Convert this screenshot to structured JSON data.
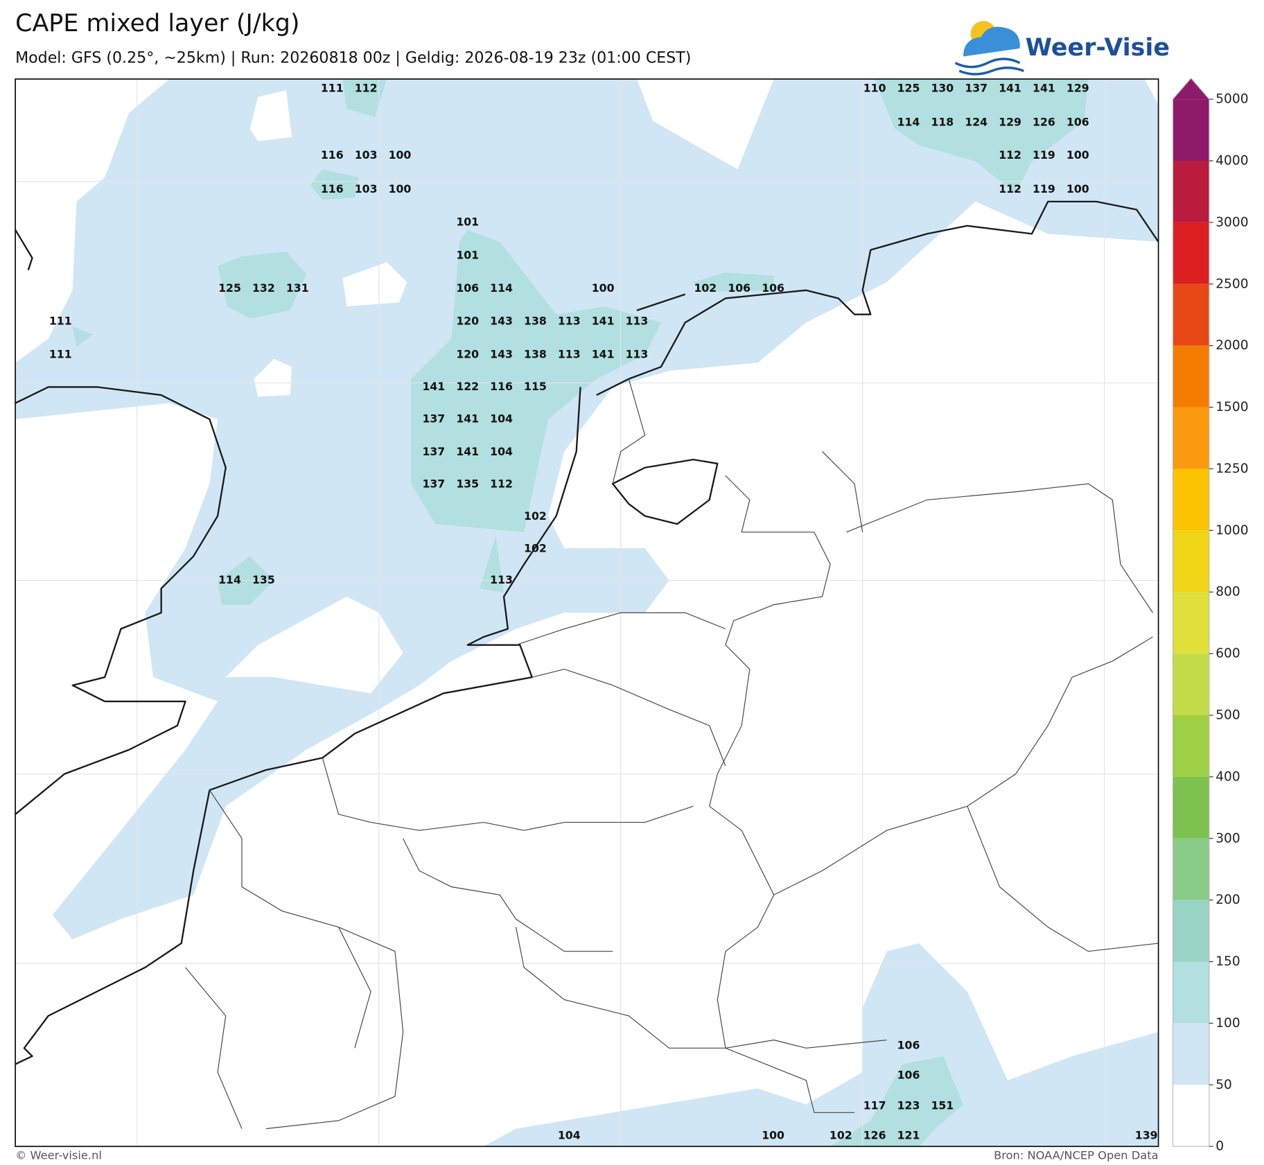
{
  "title": "CAPE mixed layer (J/kg)",
  "subtitle": "Model: GFS (0.25°, ~25km)  |  Run: 20260818 00z  |  Geldig: 2026-08-19 23z (01:00 CEST)",
  "logo": "Weer-Visie",
  "footer_left": "© Weer-visie.nl",
  "footer_right": "Bron: NOAA/NCEP Open Data",
  "colorbar": {
    "ticks": [
      0,
      50,
      100,
      150,
      200,
      300,
      400,
      500,
      600,
      800,
      1000,
      1250,
      1500,
      2000,
      2500,
      3000,
      4000,
      5000
    ],
    "colors": [
      "#ffffff",
      "#d0e6f5",
      "#b2dfe0",
      "#98d4c6",
      "#88cc88",
      "#7cc24f",
      "#9fcf43",
      "#c4dc4a",
      "#dfe03a",
      "#f0d516",
      "#fcc400",
      "#fb9a0e",
      "#f57c00",
      "#e84816",
      "#dc1f1f",
      "#b91c3c",
      "#8e1a6a"
    ],
    "extend_color": "#8e1a6a"
  },
  "point_labels": [
    111,
    112,
    110,
    125,
    130,
    137,
    141,
    141,
    129,
    114,
    118,
    124,
    129,
    126,
    106,
    116,
    103,
    100,
    112,
    119,
    100,
    116,
    103,
    100,
    112,
    119,
    100,
    101,
    101,
    125,
    132,
    131,
    106,
    114,
    100,
    102,
    106,
    106,
    111,
    120,
    143,
    138,
    113,
    141,
    113,
    111,
    120,
    143,
    138,
    113,
    141,
    113,
    141,
    122,
    116,
    115,
    137,
    141,
    104,
    137,
    141,
    104,
    137,
    135,
    112,
    102,
    102,
    114,
    135,
    113,
    106,
    106,
    117,
    123,
    151,
    104,
    100,
    102,
    126,
    121,
    139
  ]
}
